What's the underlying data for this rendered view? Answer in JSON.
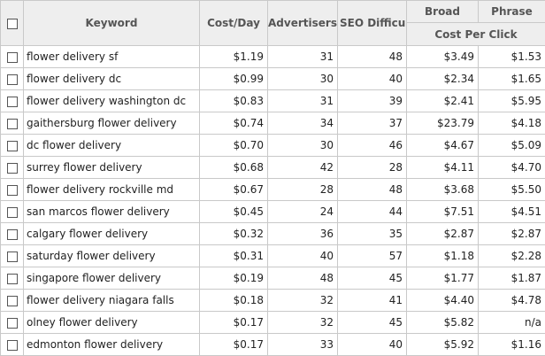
{
  "headers": {
    "keyword": "Keyword",
    "cost_day": "Cost/Day",
    "advertisers": "Advertisers",
    "seo": "SEO Difficul",
    "broad": "Broad",
    "phrase": "Phrase",
    "cpc": "Cost Per Click"
  },
  "rows": [
    {
      "keyword": "flower delivery sf",
      "cost_day": "$1.19",
      "advertisers": "31",
      "seo": "48",
      "broad": "$3.49",
      "phrase": "$1.53"
    },
    {
      "keyword": "flower delivery dc",
      "cost_day": "$0.99",
      "advertisers": "30",
      "seo": "40",
      "broad": "$2.34",
      "phrase": "$1.65"
    },
    {
      "keyword": "flower delivery washington dc",
      "cost_day": "$0.83",
      "advertisers": "31",
      "seo": "39",
      "broad": "$2.41",
      "phrase": "$5.95"
    },
    {
      "keyword": "gaithersburg flower delivery",
      "cost_day": "$0.74",
      "advertisers": "34",
      "seo": "37",
      "broad": "$23.79",
      "phrase": "$4.18"
    },
    {
      "keyword": "dc flower delivery",
      "cost_day": "$0.70",
      "advertisers": "30",
      "seo": "46",
      "broad": "$4.67",
      "phrase": "$5.09"
    },
    {
      "keyword": "surrey flower delivery",
      "cost_day": "$0.68",
      "advertisers": "42",
      "seo": "28",
      "broad": "$4.11",
      "phrase": "$4.70"
    },
    {
      "keyword": "flower delivery rockville md",
      "cost_day": "$0.67",
      "advertisers": "28",
      "seo": "48",
      "broad": "$3.68",
      "phrase": "$5.50"
    },
    {
      "keyword": "san marcos flower delivery",
      "cost_day": "$0.45",
      "advertisers": "24",
      "seo": "44",
      "broad": "$7.51",
      "phrase": "$4.51"
    },
    {
      "keyword": "calgary flower delivery",
      "cost_day": "$0.32",
      "advertisers": "36",
      "seo": "35",
      "broad": "$2.87",
      "phrase": "$2.87"
    },
    {
      "keyword": "saturday flower delivery",
      "cost_day": "$0.31",
      "advertisers": "40",
      "seo": "57",
      "broad": "$1.18",
      "phrase": "$2.28"
    },
    {
      "keyword": "singapore flower delivery",
      "cost_day": "$0.19",
      "advertisers": "48",
      "seo": "45",
      "broad": "$1.77",
      "phrase": "$1.87"
    },
    {
      "keyword": "flower delivery niagara falls",
      "cost_day": "$0.18",
      "advertisers": "32",
      "seo": "41",
      "broad": "$4.40",
      "phrase": "$4.78"
    },
    {
      "keyword": "olney flower delivery",
      "cost_day": "$0.17",
      "advertisers": "32",
      "seo": "45",
      "broad": "$5.82",
      "phrase": "n/a"
    },
    {
      "keyword": "edmonton flower delivery",
      "cost_day": "$0.17",
      "advertisers": "33",
      "seo": "40",
      "broad": "$5.92",
      "phrase": "$1.16"
    }
  ]
}
